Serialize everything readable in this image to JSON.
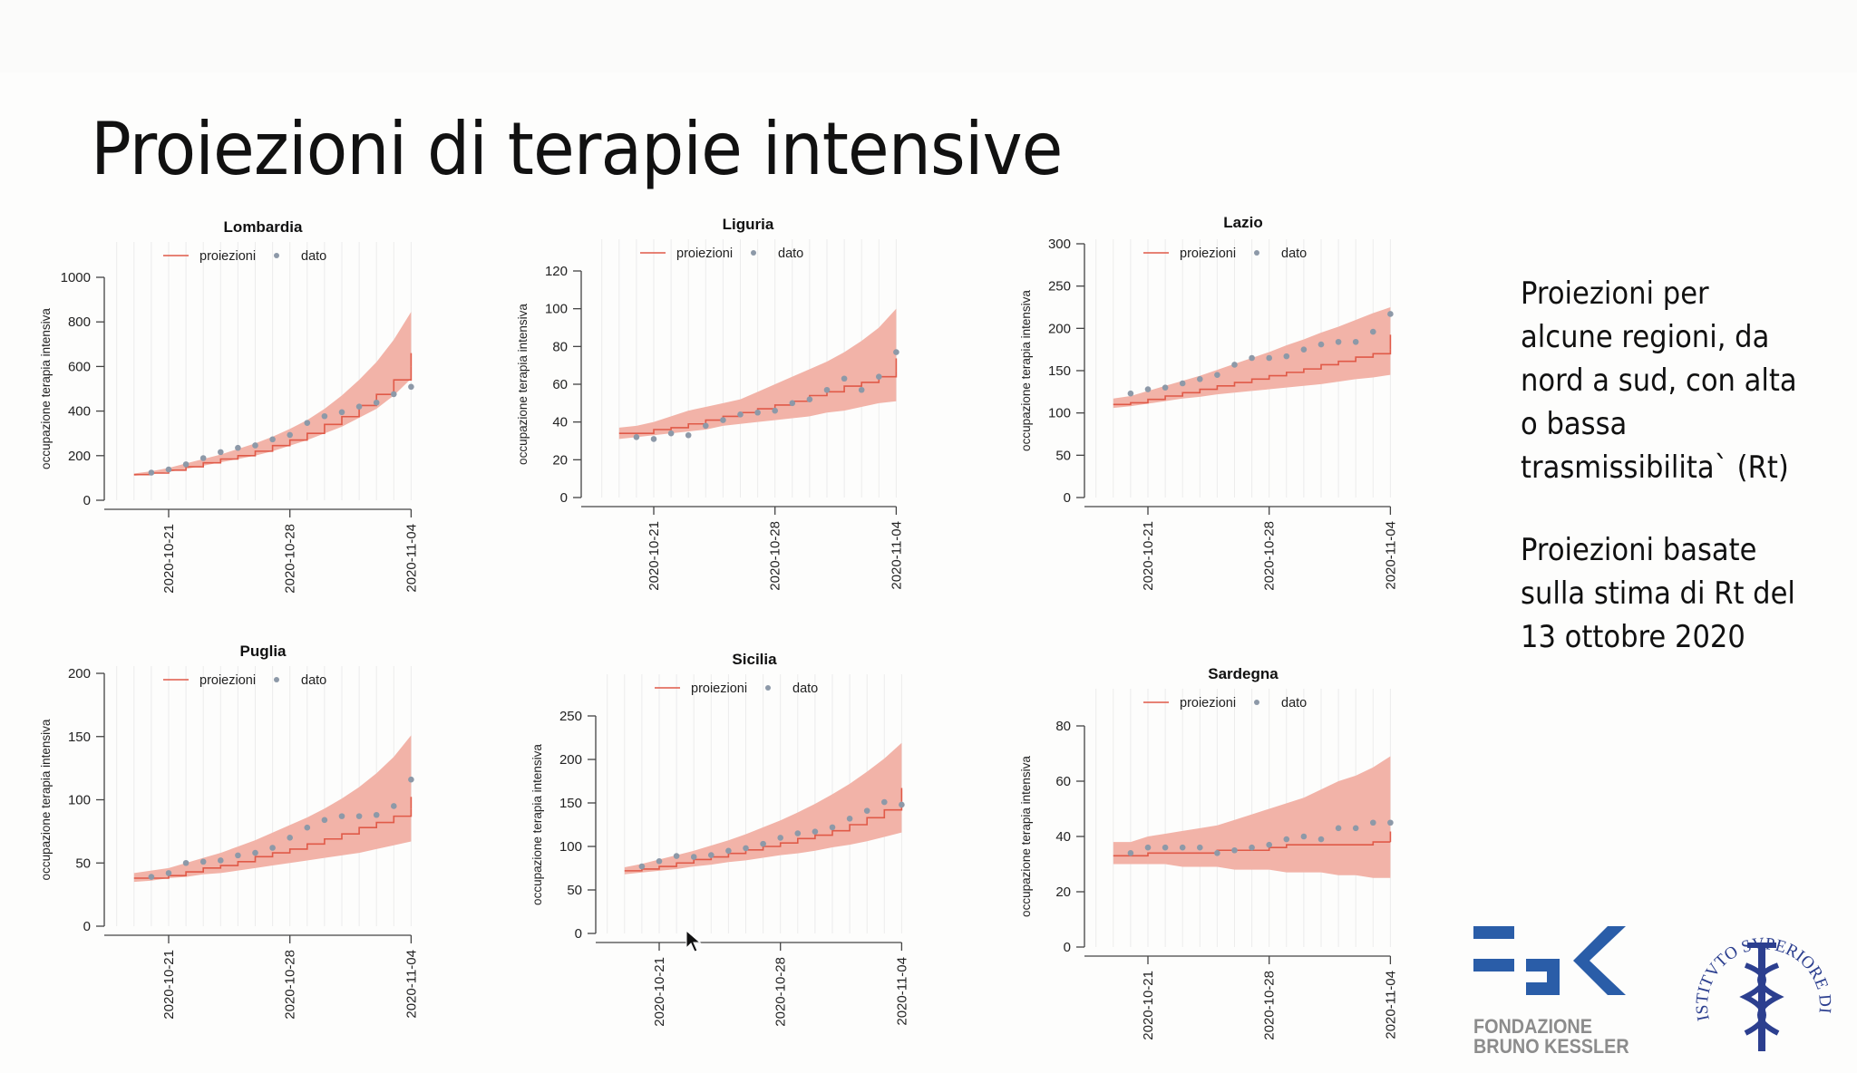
{
  "slide": {
    "title": "Proiezioni di terapie intensive",
    "side_text_1": [
      "Proiezioni per",
      "alcune regioni, da",
      "nord a sud, con alta",
      "o bassa",
      "trasmissibilita` (Rt)"
    ],
    "side_text_2": [
      "Proiezioni basate",
      "sulla stima di Rt del",
      "13 ottobre 2020"
    ],
    "logos": {
      "fbk": {
        "line1": "FONDAZIONE",
        "line2": "BRUNO KESSLER",
        "color": "#2a5da8"
      },
      "iss": {
        "text": "ISTITVTO SVPERIORE DI SANITA",
        "color": "#2c3f8f"
      }
    }
  },
  "colors": {
    "band": "#f2b3a8",
    "projection_line": "#e05a48",
    "data_dots": "#8d99a8",
    "grid": "#ececec"
  },
  "chart_data": [
    {
      "type": "line",
      "title": "Lombardia",
      "ylabel": "occupazione terapia intensiva",
      "legend": {
        "line": "proiezioni",
        "dot": "dato"
      },
      "legend_position": "top",
      "ylim": [
        0,
        1000
      ],
      "yticks": [
        0,
        200,
        400,
        600,
        800,
        1000
      ],
      "xticks": [
        "2020-10-21",
        "2020-10-28",
        "2020-11-04"
      ],
      "projection_dates": [
        "2020-10-19",
        "2020-10-20",
        "2020-10-21",
        "2020-10-22",
        "2020-10-23",
        "2020-10-24",
        "2020-10-25",
        "2020-10-26",
        "2020-10-27",
        "2020-10-28",
        "2020-10-29",
        "2020-10-30",
        "2020-10-31",
        "2020-11-01",
        "2020-11-02",
        "2020-11-03",
        "2020-11-04"
      ],
      "projection_median": [
        115,
        122,
        135,
        150,
        168,
        185,
        200,
        220,
        245,
        270,
        300,
        340,
        375,
        425,
        475,
        540,
        600
      ],
      "projection_lower": [
        110,
        117,
        127,
        140,
        155,
        170,
        185,
        200,
        220,
        245,
        270,
        300,
        330,
        370,
        410,
        470,
        545
      ],
      "projection_upper": [
        120,
        130,
        145,
        165,
        185,
        205,
        230,
        255,
        285,
        320,
        360,
        410,
        470,
        540,
        620,
        720,
        845
      ],
      "data_dates": [
        "2020-10-20",
        "2020-10-21",
        "2020-10-22",
        "2020-10-23",
        "2020-10-24",
        "2020-10-25",
        "2020-10-26",
        "2020-10-27",
        "2020-10-28",
        "2020-10-29",
        "2020-10-30",
        "2020-10-31",
        "2020-11-01",
        "2020-11-02",
        "2020-11-03",
        "2020-11-04"
      ],
      "data_values": [
        124,
        138,
        161,
        189,
        216,
        235,
        246,
        273,
        293,
        347,
        377,
        395,
        420,
        438,
        476,
        509
      ]
    },
    {
      "type": "line",
      "title": "Liguria",
      "ylabel": "occupazione terapia intensiva",
      "legend": {
        "line": "proiezioni",
        "dot": "dato"
      },
      "legend_position": "top",
      "ylim": [
        0,
        120
      ],
      "yticks": [
        0,
        20,
        40,
        60,
        80,
        100,
        120
      ],
      "xticks": [
        "2020-10-21",
        "2020-10-28",
        "2020-11-04"
      ],
      "projection_dates": [
        "2020-10-19",
        "2020-10-20",
        "2020-10-21",
        "2020-10-22",
        "2020-10-23",
        "2020-10-24",
        "2020-10-25",
        "2020-10-26",
        "2020-10-27",
        "2020-10-28",
        "2020-10-29",
        "2020-10-30",
        "2020-10-31",
        "2020-11-01",
        "2020-11-02",
        "2020-11-03",
        "2020-11-04"
      ],
      "projection_median": [
        34,
        34,
        36,
        37,
        39,
        41,
        43,
        45,
        47,
        49,
        51,
        54,
        56,
        59,
        61,
        64,
        67
      ],
      "projection_lower": [
        31,
        32,
        33,
        34,
        35,
        36,
        38,
        39,
        40,
        41,
        42,
        43,
        45,
        46,
        48,
        50,
        51
      ],
      "projection_upper": [
        37,
        38,
        40,
        43,
        46,
        48,
        50,
        52,
        56,
        60,
        64,
        68,
        72,
        77,
        83,
        90,
        100
      ],
      "data_dates": [
        "2020-10-20",
        "2020-10-21",
        "2020-10-22",
        "2020-10-23",
        "2020-10-24",
        "2020-10-25",
        "2020-10-26",
        "2020-10-27",
        "2020-10-28",
        "2020-10-29",
        "2020-10-30",
        "2020-10-31",
        "2020-11-01",
        "2020-11-02",
        "2020-11-03",
        "2020-11-04"
      ],
      "data_values": [
        32,
        31,
        34,
        33,
        38,
        41,
        44,
        45,
        46,
        50,
        52,
        57,
        63,
        57,
        64,
        77
      ]
    },
    {
      "type": "line",
      "title": "Lazio",
      "ylabel": "occupazione terapia intensiva",
      "legend": {
        "line": "proiezioni",
        "dot": "dato"
      },
      "legend_position": "top",
      "ylim": [
        0,
        300
      ],
      "yticks": [
        0,
        50,
        100,
        150,
        200,
        250,
        300
      ],
      "xticks": [
        "2020-10-21",
        "2020-10-28",
        "2020-11-04"
      ],
      "projection_dates": [
        "2020-10-19",
        "2020-10-20",
        "2020-10-21",
        "2020-10-22",
        "2020-10-23",
        "2020-10-24",
        "2020-10-25",
        "2020-10-26",
        "2020-10-27",
        "2020-10-28",
        "2020-10-29",
        "2020-10-30",
        "2020-10-31",
        "2020-11-01",
        "2020-11-02",
        "2020-11-03",
        "2020-11-04"
      ],
      "projection_median": [
        110,
        112,
        116,
        120,
        124,
        128,
        132,
        136,
        140,
        144,
        148,
        152,
        157,
        161,
        166,
        170,
        175
      ],
      "projection_lower": [
        106,
        108,
        111,
        114,
        117,
        119,
        122,
        124,
        126,
        128,
        130,
        132,
        134,
        137,
        140,
        142,
        145
      ],
      "projection_upper": [
        117,
        120,
        126,
        132,
        138,
        144,
        151,
        158,
        165,
        172,
        180,
        187,
        195,
        202,
        210,
        218,
        225
      ],
      "data_dates": [
        "2020-10-20",
        "2020-10-21",
        "2020-10-22",
        "2020-10-23",
        "2020-10-24",
        "2020-10-25",
        "2020-10-26",
        "2020-10-27",
        "2020-10-28",
        "2020-10-29",
        "2020-10-30",
        "2020-10-31",
        "2020-11-01",
        "2020-11-02",
        "2020-11-03",
        "2020-11-04"
      ],
      "data_values": [
        123,
        128,
        130,
        135,
        140,
        145,
        157,
        165,
        165,
        167,
        175,
        181,
        184,
        184,
        196,
        217
      ]
    },
    {
      "type": "line",
      "title": "Puglia",
      "ylabel": "occupazione terapia intensiva",
      "legend": {
        "line": "proiezioni",
        "dot": "dato"
      },
      "legend_position": "top",
      "ylim": [
        0,
        200
      ],
      "yticks": [
        0,
        50,
        100,
        150,
        200
      ],
      "xticks": [
        "2020-10-21",
        "2020-10-28",
        "2020-11-04"
      ],
      "projection_dates": [
        "2020-10-19",
        "2020-10-20",
        "2020-10-21",
        "2020-10-22",
        "2020-10-23",
        "2020-10-24",
        "2020-10-25",
        "2020-10-26",
        "2020-10-27",
        "2020-10-28",
        "2020-10-29",
        "2020-10-30",
        "2020-10-31",
        "2020-11-01",
        "2020-11-02",
        "2020-11-03",
        "2020-11-04"
      ],
      "projection_median": [
        38,
        38,
        40,
        43,
        46,
        48,
        51,
        55,
        58,
        61,
        65,
        69,
        73,
        78,
        82,
        87,
        93
      ],
      "projection_lower": [
        35,
        36,
        38,
        39,
        41,
        42,
        44,
        46,
        48,
        50,
        52,
        54,
        56,
        58,
        61,
        64,
        67
      ],
      "projection_upper": [
        42,
        44,
        46,
        50,
        54,
        58,
        63,
        68,
        74,
        80,
        86,
        93,
        101,
        110,
        121,
        134,
        151
      ],
      "data_dates": [
        "2020-10-20",
        "2020-10-21",
        "2020-10-22",
        "2020-10-23",
        "2020-10-24",
        "2020-10-25",
        "2020-10-26",
        "2020-10-27",
        "2020-10-28",
        "2020-10-29",
        "2020-10-30",
        "2020-10-31",
        "2020-11-01",
        "2020-11-02",
        "2020-11-03",
        "2020-11-04"
      ],
      "data_values": [
        39,
        42,
        50,
        51,
        52,
        56,
        58,
        62,
        70,
        78,
        84,
        87,
        87,
        88,
        95,
        116
      ]
    },
    {
      "type": "line",
      "title": "Sicilia",
      "ylabel": "occupazione terapia intensiva",
      "legend": {
        "line": "proiezioni",
        "dot": "dato"
      },
      "legend_position": "top",
      "ylim": [
        0,
        250
      ],
      "yticks": [
        0,
        50,
        100,
        150,
        200,
        250
      ],
      "xticks": [
        "2020-10-21",
        "2020-10-28",
        "2020-11-04"
      ],
      "projection_dates": [
        "2020-10-19",
        "2020-10-20",
        "2020-10-21",
        "2020-10-22",
        "2020-10-23",
        "2020-10-24",
        "2020-10-25",
        "2020-10-26",
        "2020-10-27",
        "2020-10-28",
        "2020-10-29",
        "2020-10-30",
        "2020-10-31",
        "2020-11-01",
        "2020-11-02",
        "2020-11-03",
        "2020-11-04"
      ],
      "projection_median": [
        72,
        74,
        77,
        81,
        85,
        88,
        92,
        96,
        100,
        104,
        109,
        113,
        118,
        125,
        133,
        142,
        152
      ],
      "projection_lower": [
        68,
        70,
        72,
        74,
        77,
        79,
        82,
        84,
        87,
        90,
        92,
        95,
        99,
        102,
        106,
        111,
        116
      ],
      "projection_upper": [
        76,
        80,
        85,
        90,
        95,
        101,
        107,
        114,
        122,
        130,
        139,
        149,
        160,
        172,
        186,
        201,
        219
      ],
      "data_dates": [
        "2020-10-20",
        "2020-10-21",
        "2020-10-22",
        "2020-10-23",
        "2020-10-24",
        "2020-10-25",
        "2020-10-26",
        "2020-10-27",
        "2020-10-28",
        "2020-10-29",
        "2020-10-30",
        "2020-10-31",
        "2020-11-01",
        "2020-11-02",
        "2020-11-03",
        "2020-11-04"
      ],
      "data_values": [
        77,
        83,
        89,
        88,
        90,
        95,
        98,
        103,
        110,
        115,
        117,
        122,
        132,
        141,
        151,
        148
      ]
    },
    {
      "type": "line",
      "title": "Sardegna",
      "ylabel": "occupazione terapia intensiva",
      "legend": {
        "line": "proiezioni",
        "dot": "dato"
      },
      "legend_position": "top",
      "ylim": [
        0,
        80
      ],
      "yticks": [
        0,
        20,
        40,
        60,
        80
      ],
      "xticks": [
        "2020-10-21",
        "2020-10-28",
        "2020-11-04"
      ],
      "projection_dates": [
        "2020-10-19",
        "2020-10-20",
        "2020-10-21",
        "2020-10-22",
        "2020-10-23",
        "2020-10-24",
        "2020-10-25",
        "2020-10-26",
        "2020-10-27",
        "2020-10-28",
        "2020-10-29",
        "2020-10-30",
        "2020-10-31",
        "2020-11-01",
        "2020-11-02",
        "2020-11-03",
        "2020-11-04"
      ],
      "projection_median": [
        33,
        33,
        34,
        34,
        34,
        34,
        35,
        35,
        35,
        36,
        37,
        37,
        37,
        37,
        37,
        38,
        38
      ],
      "projection_lower": [
        30,
        30,
        30,
        30,
        29,
        29,
        29,
        28,
        28,
        28,
        27,
        27,
        27,
        26,
        26,
        25,
        25
      ],
      "projection_upper": [
        38,
        38,
        40,
        41,
        42,
        43,
        44,
        46,
        48,
        50,
        52,
        54,
        57,
        60,
        62,
        65,
        69
      ],
      "data_dates": [
        "2020-10-20",
        "2020-10-21",
        "2020-10-22",
        "2020-10-23",
        "2020-10-24",
        "2020-10-25",
        "2020-10-26",
        "2020-10-27",
        "2020-10-28",
        "2020-10-29",
        "2020-10-30",
        "2020-10-31",
        "2020-11-01",
        "2020-11-02",
        "2020-11-03",
        "2020-11-04"
      ],
      "data_values": [
        34,
        36,
        36,
        36,
        36,
        34,
        35,
        36,
        37,
        39,
        40,
        39,
        43,
        43,
        45,
        45
      ]
    }
  ]
}
